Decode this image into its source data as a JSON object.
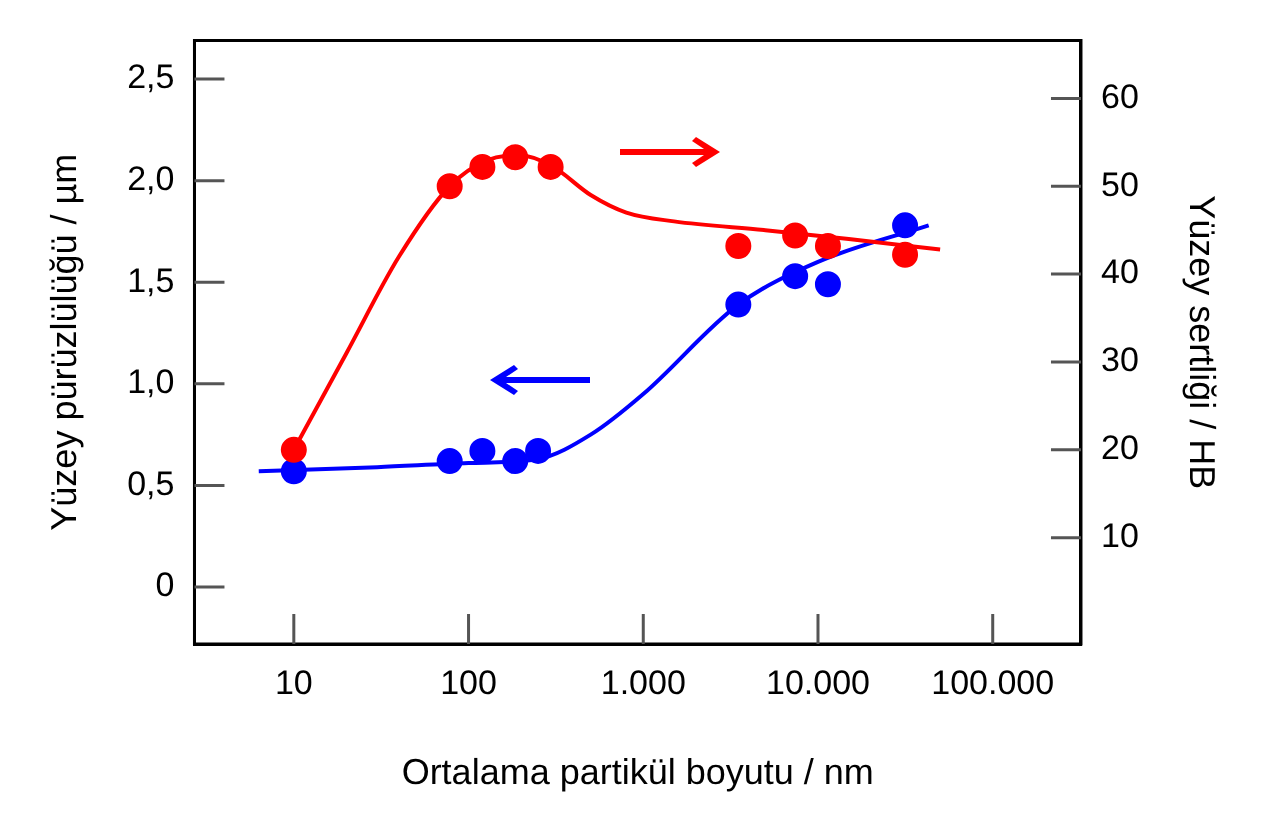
{
  "chart_data": {
    "type": "scatter",
    "xlabel": "Ortalama partikül boyutu / nm",
    "ylabel": "Yüzey pürüzlülüğü / µm",
    "y2label": "Yüzey sertliği / HB",
    "log": "x",
    "grid": false,
    "legend": false,
    "marker": "circle",
    "xlim": [
      2.7,
      320000
    ],
    "xticks": [
      10,
      100,
      {
        "value": 1000,
        "label": "1.000"
      },
      {
        "value": 10000,
        "label": "10.000"
      },
      {
        "value": 100000,
        "label": "100.000"
      }
    ],
    "ylim": [
      -0.28,
      2.69
    ],
    "yticks": [
      {
        "value": 0,
        "label": "0"
      },
      {
        "value": 0.5,
        "label": "0,5"
      },
      {
        "value": 1,
        "label": "1,0"
      },
      {
        "value": 1.5,
        "label": "1,5"
      },
      {
        "value": 2,
        "label": "2,0"
      },
      {
        "value": 2.5,
        "label": "2,5"
      }
    ],
    "y2lim": [
      -2.1,
      66.6
    ],
    "y2ticks": [
      10,
      20,
      30,
      40,
      50,
      60
    ],
    "series": [
      {
        "axis": "y2",
        "color": "#ff0000",
        "x": [
          10,
          78,
          120,
          185,
          295,
          3500,
          7400,
          11400,
          31500
        ],
        "values": [
          20,
          50,
          52.2,
          53.3,
          52.2,
          43.2,
          44.4,
          43.2,
          42.2
        ]
      },
      {
        "axis": "y",
        "color": "#0000ff",
        "x": [
          10,
          78,
          120,
          185,
          250,
          3500,
          7400,
          11400,
          31500
        ],
        "values": [
          0.57,
          0.62,
          0.67,
          0.62,
          0.67,
          1.39,
          1.53,
          1.49,
          1.78
        ]
      },
      {
        "type": "line",
        "marker": "none",
        "axis": "y2",
        "color": "#ff0000",
        "x": [
          10,
          20,
          40,
          78,
          130,
          200,
          300,
          500,
          800,
          1500,
          5000,
          15000,
          50000
        ],
        "values": [
          20,
          31,
          42,
          50,
          53,
          53.5,
          52.3,
          49,
          47,
          46,
          45,
          44,
          42.8
        ]
      },
      {
        "type": "line",
        "marker": "none",
        "axis": "y",
        "color": "#0000ff",
        "x": [
          6.3,
          30,
          100,
          250,
          500,
          1000,
          3500,
          10000,
          43000
        ],
        "values": [
          0.57,
          0.59,
          0.61,
          0.63,
          0.75,
          0.95,
          1.39,
          1.6,
          1.78
        ]
      }
    ]
  }
}
